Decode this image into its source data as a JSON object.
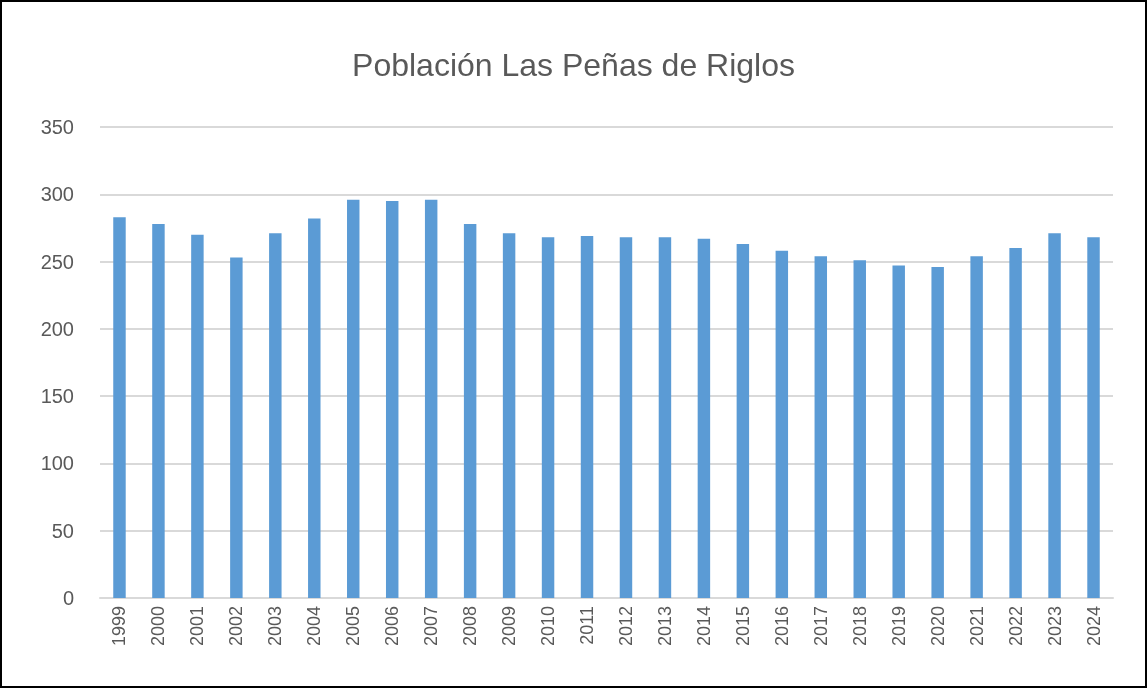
{
  "chart_data": {
    "type": "bar",
    "title": "Población Las Peñas de Riglos",
    "categories": [
      "1999",
      "2000",
      "2001",
      "2002",
      "2003",
      "2004",
      "2005",
      "2006",
      "2007",
      "2008",
      "2009",
      "2010",
      "2011",
      "2012",
      "2013",
      "2014",
      "2015",
      "2016",
      "2017",
      "2018",
      "2019",
      "2020",
      "2021",
      "2022",
      "2023",
      "2024"
    ],
    "values": [
      283,
      278,
      270,
      253,
      271,
      282,
      296,
      295,
      296,
      278,
      271,
      268,
      269,
      268,
      268,
      267,
      263,
      258,
      254,
      251,
      247,
      246,
      254,
      260,
      271,
      268
    ],
    "color": "#5b9bd5",
    "ylim": [
      0,
      350
    ],
    "yticks": [
      0,
      50,
      100,
      150,
      200,
      250,
      300,
      350
    ],
    "grid": "y"
  }
}
